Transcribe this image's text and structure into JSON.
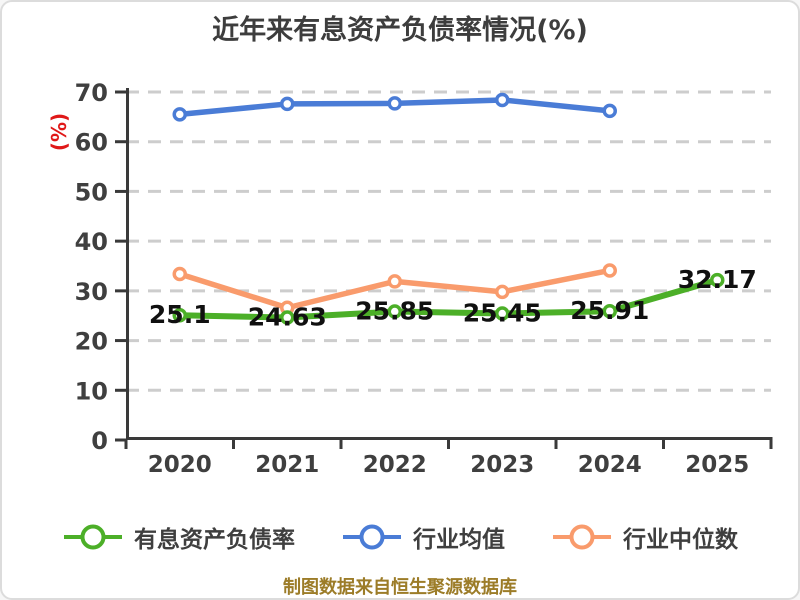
{
  "page": {
    "background": "#ffffff",
    "border_color": "#dcdcdc"
  },
  "header": {
    "title": "近年来有息资产负债率情况(%)",
    "title_color": "#3d3d3d"
  },
  "footer": {
    "text": "制图数据来自恒生聚源数据库",
    "color": "#9c7c28"
  },
  "chart_data": {
    "type": "line",
    "title": "近年来有息资产负债率情况(%)",
    "categories": [
      "2020",
      "2021",
      "2022",
      "2023",
      "2024",
      "2025"
    ],
    "series": [
      {
        "name": "有息资产负债率",
        "color": "#4caf28",
        "values": [
          25.1,
          24.63,
          25.85,
          25.45,
          25.91,
          32.17
        ],
        "point_labels": [
          "25.1",
          "24.63",
          "25.85",
          "25.45",
          "25.91",
          "32.17"
        ]
      },
      {
        "name": "行业均值",
        "color": "#4a7cd6",
        "values": [
          65.5,
          67.6,
          67.7,
          68.4,
          66.2,
          null
        ]
      },
      {
        "name": "行业中位数",
        "color": "#f99b6c",
        "values": [
          33.4,
          26.6,
          31.9,
          29.8,
          34.1,
          null
        ]
      }
    ],
    "ylim": [
      0,
      70
    ],
    "yticks": [
      0,
      10,
      20,
      30,
      40,
      50,
      60,
      70
    ],
    "y_unit": "(%)",
    "y_unit_color": "#e01818",
    "grid": "horizontal-dashed",
    "grid_color": "#cdcdcd",
    "axis_color": "#3a3a3a",
    "tick_label_color": "#3f3f3f",
    "data_label_color": "#101010",
    "marker_fill": "#ffffff",
    "legend_position": "bottom"
  }
}
